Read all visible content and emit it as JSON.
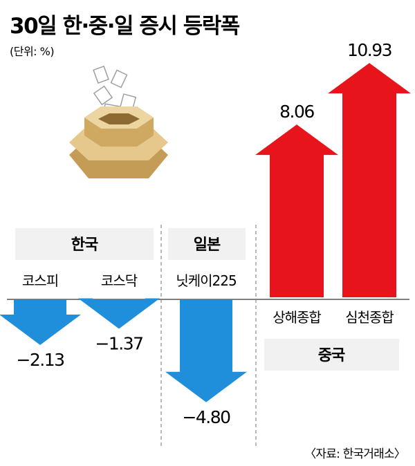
{
  "title": "30일 한·중·일 증시 등락폭",
  "unit": "(단위: %)",
  "source": "〈자료: 한국거래소〉",
  "groups": [
    "한국",
    "일본",
    "중국"
  ],
  "colors": {
    "down": "#1f8fdb",
    "up": "#e8141c",
    "box": "#f1f1f1",
    "line": "#555555"
  },
  "icon": "ballot-box-icon",
  "chart_data": {
    "type": "bar",
    "categories": [
      "코스피",
      "코스닥",
      "닛케이225",
      "상해종합",
      "심천종합"
    ],
    "values": [
      -2.13,
      -1.37,
      -4.8,
      8.06,
      10.93
    ],
    "value_labels": [
      "−2.13",
      "−1.37",
      "−4.80",
      "8.06",
      "10.93"
    ],
    "groups": [
      "한국",
      "한국",
      "일본",
      "중국",
      "중국"
    ],
    "title": "30일 한·중·일 증시 등락폭",
    "ylabel": "",
    "unit": "%"
  }
}
